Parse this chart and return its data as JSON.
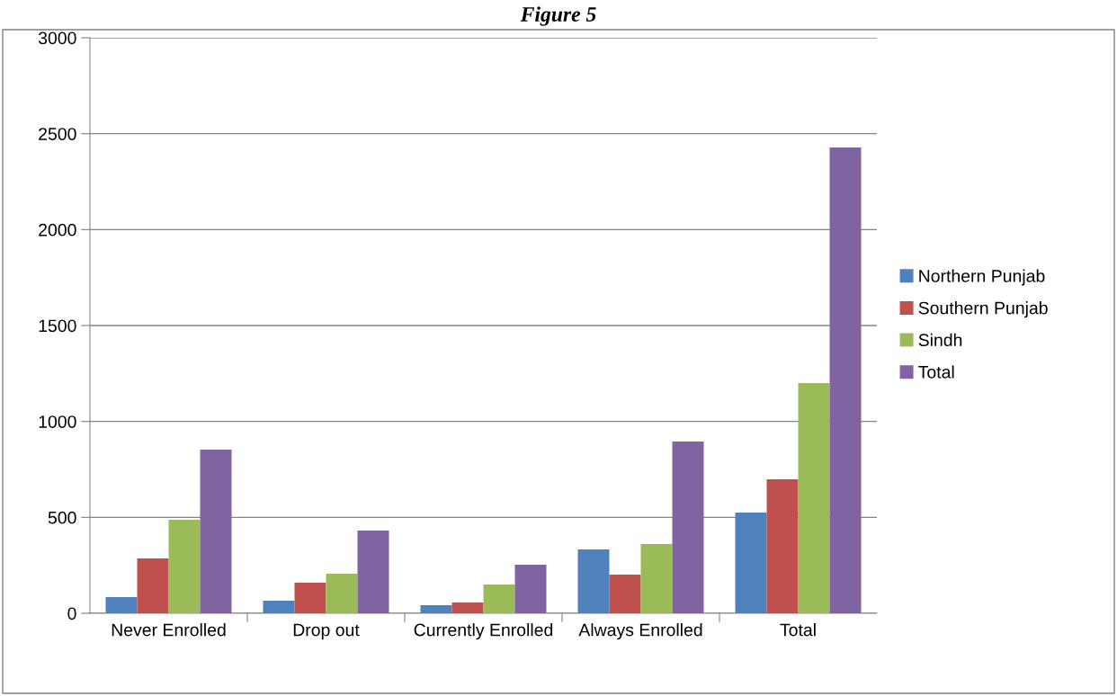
{
  "chart_data": {
    "type": "bar",
    "title": "Figure 5",
    "categories": [
      "Never Enrolled",
      "Drop out",
      "Currently Enrolled",
      "Always Enrolled",
      "Total"
    ],
    "series": [
      {
        "name": "Northern Punjab",
        "color": "#4f81bd",
        "values": [
          84,
          66,
          42,
          333,
          525
        ]
      },
      {
        "name": "Southern Punjab",
        "color": "#c0504d",
        "values": [
          286,
          159,
          56,
          202,
          698
        ]
      },
      {
        "name": "Sindh",
        "color": "#9bbb59",
        "values": [
          487,
          206,
          150,
          361,
          1200
        ]
      },
      {
        "name": "Total",
        "color": "#8064a2",
        "values": [
          853,
          431,
          253,
          895,
          2428
        ]
      }
    ],
    "ylim": [
      0,
      3000
    ],
    "yticks": [
      0,
      500,
      1000,
      1500,
      2000,
      2500,
      3000
    ],
    "grid": "y",
    "legend": "right"
  }
}
